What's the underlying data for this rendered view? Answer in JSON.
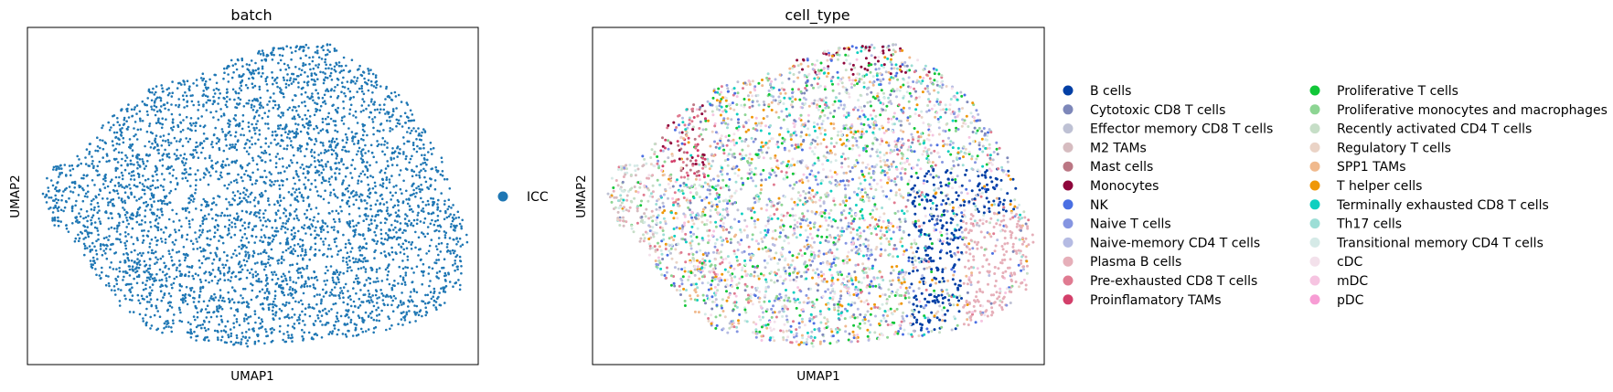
{
  "chart_data": [
    {
      "type": "scatter",
      "title": "batch",
      "xlabel": "UMAP1",
      "ylabel": "UMAP2",
      "ticks": false,
      "grid": false,
      "legend_position": "right",
      "series": [
        {
          "name": "ICC",
          "color": "#1f77b4"
        }
      ]
    },
    {
      "type": "scatter",
      "title": "cell_type",
      "xlabel": "UMAP1",
      "ylabel": "UMAP2",
      "ticks": false,
      "grid": false,
      "legend_position": "right",
      "series": [
        {
          "name": "B cells",
          "color": "#023fa5"
        },
        {
          "name": "Cytotoxic CD8 T cells",
          "color": "#7d87b9"
        },
        {
          "name": "Effector memory CD8 T cells",
          "color": "#bec1d4"
        },
        {
          "name": "M2 TAMs",
          "color": "#d6bcc0"
        },
        {
          "name": "Mast cells",
          "color": "#bb7784"
        },
        {
          "name": "Monocytes",
          "color": "#8e063b"
        },
        {
          "name": "NK",
          "color": "#4a6fe3"
        },
        {
          "name": "Naive T cells",
          "color": "#8595e1"
        },
        {
          "name": "Naive-memory CD4 T cells",
          "color": "#b5bbe3"
        },
        {
          "name": "Plasma B cells",
          "color": "#e6afb9"
        },
        {
          "name": "Pre-exhausted CD8 T cells",
          "color": "#e07b91"
        },
        {
          "name": "Proinflamatory TAMs",
          "color": "#d33f6a"
        },
        {
          "name": "Proliferative T cells",
          "color": "#11c638"
        },
        {
          "name": "Proliferative monocytes and macrophages",
          "color": "#8dd593"
        },
        {
          "name": "Recently activated CD4 T cells",
          "color": "#c6dec7"
        },
        {
          "name": "Regulatory T cells",
          "color": "#ead3c6"
        },
        {
          "name": "SPP1 TAMs",
          "color": "#f0b98d"
        },
        {
          "name": "T helper cells",
          "color": "#ef9708"
        },
        {
          "name": "Terminally exhausted CD8 T cells",
          "color": "#0fcfc0"
        },
        {
          "name": "Th17 cells",
          "color": "#9cded6"
        },
        {
          "name": "Transitional memory CD4 T cells",
          "color": "#d5eae7"
        },
        {
          "name": "cDC",
          "color": "#f3e1eb"
        },
        {
          "name": "mDC",
          "color": "#f6c4e1"
        },
        {
          "name": "pDC",
          "color": "#f79cd4"
        }
      ]
    }
  ]
}
